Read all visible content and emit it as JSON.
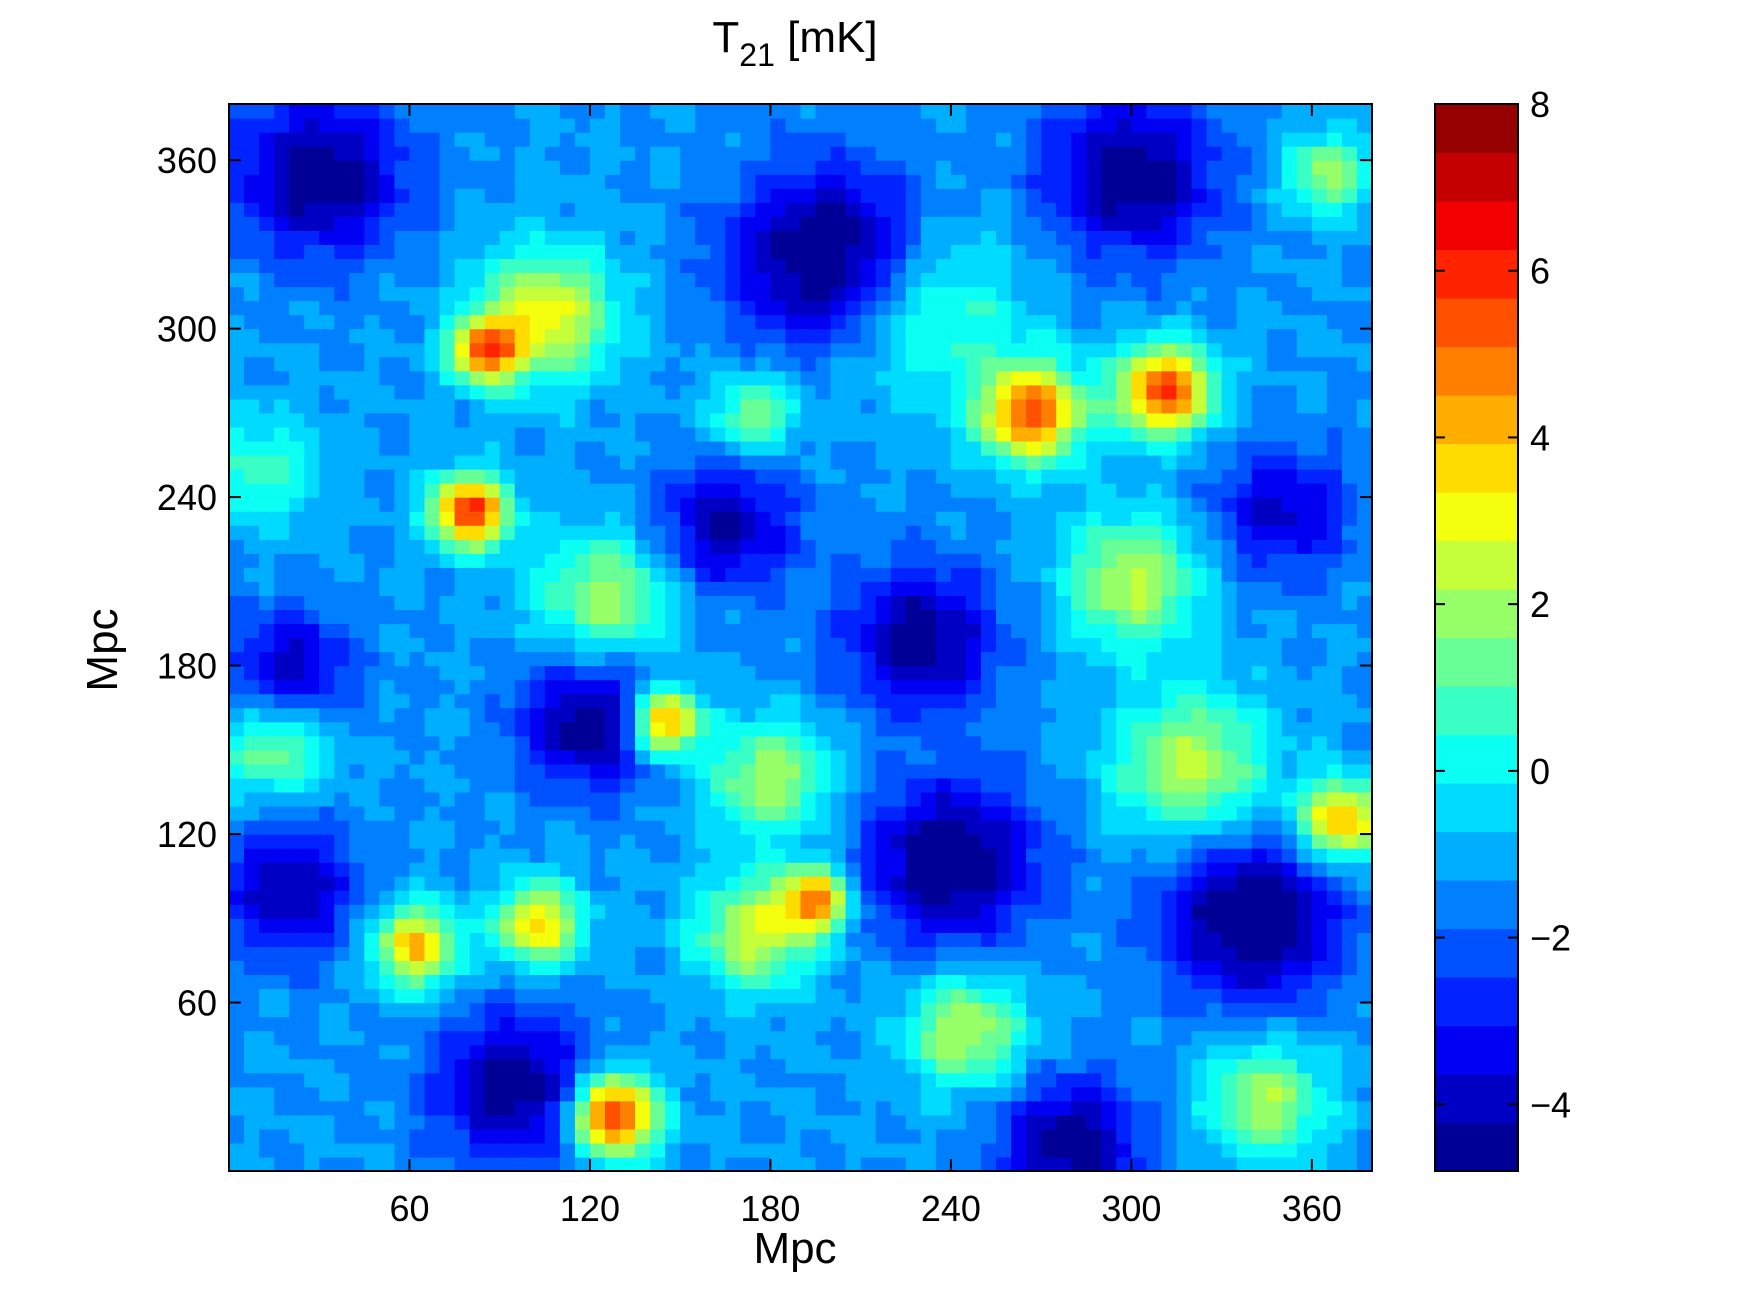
{
  "chart_data": {
    "type": "heatmap",
    "title": "T",
    "title_subscript": "21",
    "title_suffix": " [mK]",
    "xlabel": "Mpc",
    "ylabel": "Mpc",
    "xlim": [
      0,
      380
    ],
    "ylim": [
      0,
      380
    ],
    "xticks": [
      60,
      120,
      180,
      240,
      300,
      360
    ],
    "yticks": [
      60,
      120,
      180,
      240,
      300,
      360
    ],
    "colorbar": {
      "colormap": "jet",
      "range": [
        -4.8,
        8
      ],
      "ticks": [
        -4,
        -2,
        0,
        2,
        4,
        6,
        8
      ],
      "tick_labels": [
        "−4",
        "−2",
        "0",
        "2",
        "4",
        "6",
        "8"
      ]
    },
    "background_level": -1.3,
    "grid": false,
    "features": [
      {
        "x": 80,
        "y": 235,
        "peak": 6.8,
        "sigma": 9
      },
      {
        "x": 128,
        "y": 20,
        "peak": 7.2,
        "sigma": 10
      },
      {
        "x": 145,
        "y": 160,
        "peak": 6.0,
        "sigma": 8
      },
      {
        "x": 267,
        "y": 270,
        "peak": 6.2,
        "sigma": 12
      },
      {
        "x": 311,
        "y": 278,
        "peak": 6.6,
        "sigma": 11
      },
      {
        "x": 85,
        "y": 292,
        "peak": 5.5,
        "sigma": 8
      },
      {
        "x": 195,
        "y": 97,
        "peak": 5.2,
        "sigma": 8
      },
      {
        "x": 370,
        "y": 125,
        "peak": 5.2,
        "sigma": 10
      },
      {
        "x": 62,
        "y": 80,
        "peak": 4.8,
        "sigma": 10
      },
      {
        "x": 103,
        "y": 88,
        "peak": 4.5,
        "sigma": 10
      },
      {
        "x": 175,
        "y": 85,
        "peak": 3.5,
        "sigma": 14
      },
      {
        "x": 105,
        "y": 305,
        "peak": 4.0,
        "sigma": 16
      },
      {
        "x": 300,
        "y": 210,
        "peak": 3.2,
        "sigma": 16
      },
      {
        "x": 320,
        "y": 145,
        "peak": 3.2,
        "sigma": 18
      },
      {
        "x": 245,
        "y": 50,
        "peak": 3.2,
        "sigma": 14
      },
      {
        "x": 345,
        "y": 25,
        "peak": 3.0,
        "sigma": 14
      },
      {
        "x": 180,
        "y": 140,
        "peak": 3.0,
        "sigma": 14
      },
      {
        "x": 125,
        "y": 205,
        "peak": 2.8,
        "sigma": 16
      },
      {
        "x": 175,
        "y": 270,
        "peak": 2.5,
        "sigma": 10
      },
      {
        "x": 365,
        "y": 355,
        "peak": 2.8,
        "sigma": 10
      },
      {
        "x": 15,
        "y": 150,
        "peak": 2.4,
        "sigma": 12
      },
      {
        "x": 232,
        "y": 307,
        "peak": 2.0,
        "sigma": 22
      },
      {
        "x": 10,
        "y": 250,
        "peak": 1.6,
        "sigma": 14
      },
      {
        "x": 200,
        "y": 325,
        "peak": -4.8,
        "sigma": 22
      },
      {
        "x": 340,
        "y": 90,
        "peak": -4.5,
        "sigma": 20
      },
      {
        "x": 240,
        "y": 110,
        "peak": -4.3,
        "sigma": 20
      },
      {
        "x": 30,
        "y": 355,
        "peak": -4.0,
        "sigma": 20
      },
      {
        "x": 300,
        "y": 355,
        "peak": -4.0,
        "sigma": 20
      },
      {
        "x": 95,
        "y": 30,
        "peak": -4.0,
        "sigma": 18
      },
      {
        "x": 120,
        "y": 160,
        "peak": -4.0,
        "sigma": 16
      },
      {
        "x": 230,
        "y": 190,
        "peak": -3.8,
        "sigma": 18
      },
      {
        "x": 20,
        "y": 100,
        "peak": -3.5,
        "sigma": 16
      },
      {
        "x": 165,
        "y": 230,
        "peak": -3.5,
        "sigma": 16
      },
      {
        "x": 280,
        "y": 10,
        "peak": -4.0,
        "sigma": 16
      },
      {
        "x": 350,
        "y": 235,
        "peak": -3.0,
        "sigma": 16
      },
      {
        "x": 20,
        "y": 180,
        "peak": -3.2,
        "sigma": 14
      }
    ]
  }
}
